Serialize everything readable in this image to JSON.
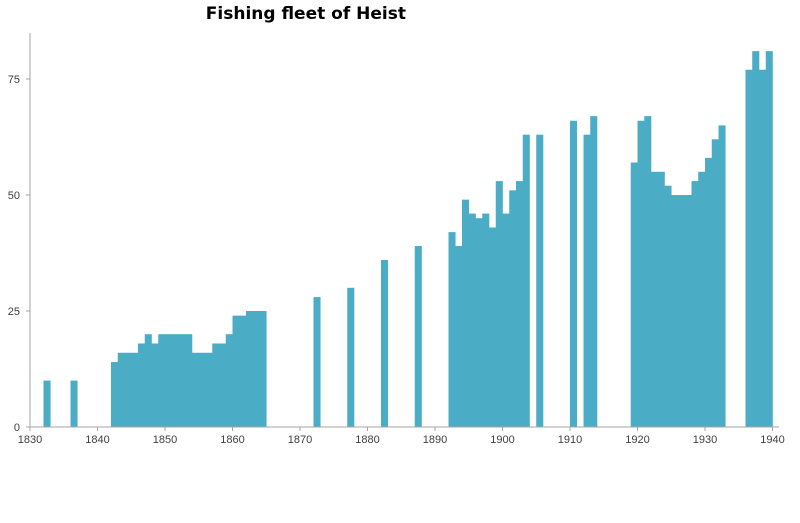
{
  "chart_data": {
    "type": "bar",
    "title": "Fishing fleet of Heist",
    "xlabel": "",
    "ylabel": "",
    "xlim": [
      1830,
      1940
    ],
    "ylim": [
      0,
      85
    ],
    "x_ticks": [
      1830,
      1840,
      1850,
      1860,
      1870,
      1880,
      1890,
      1900,
      1910,
      1920,
      1930,
      1940
    ],
    "y_ticks": [
      0,
      25,
      50,
      75
    ],
    "grid": false,
    "legend": null,
    "bar_color": "#4bacc6",
    "x": [
      1832,
      1836,
      1842,
      1843,
      1844,
      1845,
      1846,
      1847,
      1848,
      1849,
      1850,
      1851,
      1852,
      1853,
      1854,
      1855,
      1856,
      1857,
      1858,
      1859,
      1860,
      1861,
      1862,
      1863,
      1864,
      1872,
      1877,
      1882,
      1887,
      1892,
      1893,
      1894,
      1895,
      1896,
      1897,
      1898,
      1899,
      1900,
      1901,
      1902,
      1903,
      1905,
      1910,
      1912,
      1913,
      1919,
      1920,
      1921,
      1922,
      1923,
      1924,
      1925,
      1926,
      1927,
      1928,
      1929,
      1930,
      1931,
      1932,
      1936,
      1937,
      1938,
      1939
    ],
    "values": [
      10,
      10,
      14,
      16,
      16,
      16,
      18,
      20,
      18,
      20,
      20,
      20,
      20,
      20,
      16,
      16,
      16,
      18,
      18,
      20,
      24,
      24,
      25,
      25,
      25,
      28,
      30,
      36,
      39,
      42,
      39,
      49,
      46,
      45,
      46,
      43,
      53,
      46,
      51,
      53,
      63,
      63,
      66,
      63,
      67,
      57,
      66,
      67,
      55,
      55,
      52,
      50,
      50,
      50,
      53,
      55,
      58,
      62,
      65,
      77,
      81,
      77,
      81
    ]
  }
}
